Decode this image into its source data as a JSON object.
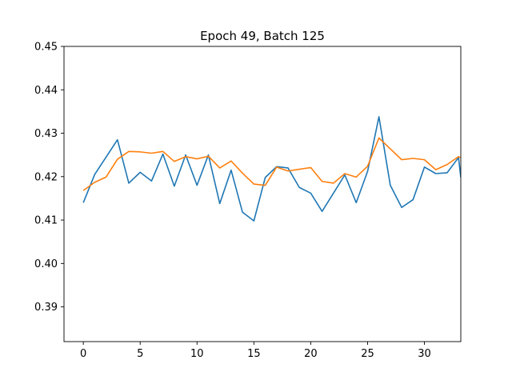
{
  "chart_data": {
    "type": "line",
    "title": "Epoch 49, Batch 125",
    "xlabel": "",
    "ylabel": "",
    "xlim": [
      -1.7,
      33.2
    ],
    "ylim": [
      0.382,
      0.45
    ],
    "x_ticks": [
      0,
      5,
      10,
      15,
      20,
      25,
      30
    ],
    "y_ticks": [
      0.39,
      0.4,
      0.41,
      0.42,
      0.43,
      0.44,
      0.45
    ],
    "grid": false,
    "legend": "none",
    "x": [
      0,
      1,
      2,
      3,
      4,
      5,
      6,
      7,
      8,
      9,
      10,
      11,
      12,
      13,
      14,
      15,
      16,
      17,
      18,
      19,
      20,
      21,
      22,
      23,
      24,
      25,
      26,
      27,
      28,
      29,
      30,
      31,
      32,
      33,
      33.2
    ],
    "series": [
      {
        "color": "#1f77b4",
        "values": [
          0.414,
          0.4205,
          0.4245,
          0.4285,
          0.4185,
          0.421,
          0.419,
          0.4252,
          0.4178,
          0.425,
          0.418,
          0.425,
          0.4138,
          0.4215,
          0.4118,
          0.4098,
          0.4198,
          0.4223,
          0.422,
          0.4175,
          0.4162,
          0.412,
          0.4162,
          0.4204,
          0.414,
          0.4212,
          0.4338,
          0.418,
          0.4129,
          0.4147,
          0.4222,
          0.4207,
          0.4209,
          0.4244,
          0.4198
        ]
      },
      {
        "color": "#ff7f0e",
        "values": [
          0.4168,
          0.4187,
          0.4199,
          0.424,
          0.4258,
          0.4257,
          0.4254,
          0.4258,
          0.4235,
          0.4246,
          0.4241,
          0.4247,
          0.422,
          0.4236,
          0.4208,
          0.4183,
          0.418,
          0.4222,
          0.4213,
          0.4217,
          0.4221,
          0.4189,
          0.4185,
          0.4207,
          0.4199,
          0.4224,
          0.4289,
          0.4264,
          0.4239,
          0.4242,
          0.4239,
          0.4216,
          0.4228,
          0.4246,
          0.4244
        ]
      }
    ]
  }
}
